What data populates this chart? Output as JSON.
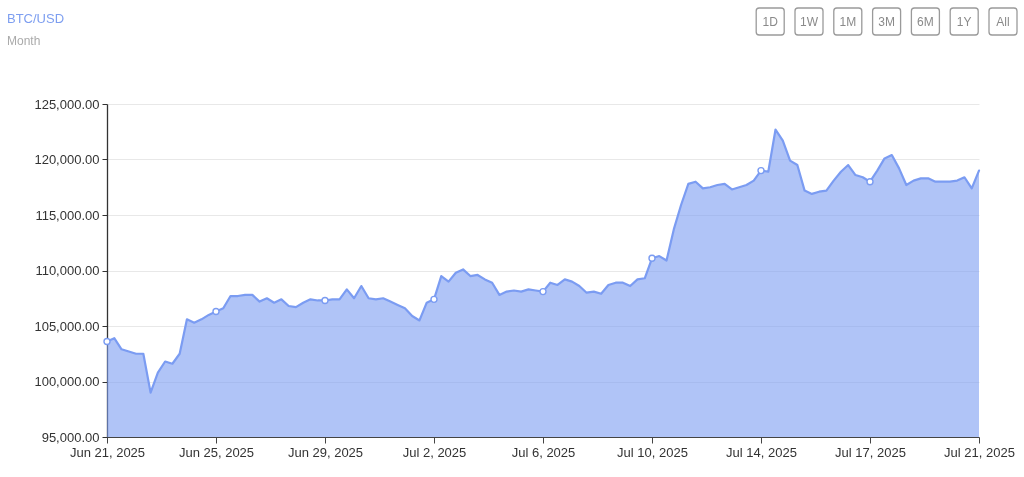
{
  "chart_data": {
    "type": "area",
    "title": "BTC/USD",
    "subtitle": "Month",
    "annotations": [
      "1D",
      "1W",
      "1M",
      "3M",
      "6M",
      "1Y",
      "All"
    ],
    "categories": [
      "Jun 21, 2025",
      null,
      null,
      null,
      null,
      null,
      null,
      null,
      null,
      null,
      null,
      null,
      null,
      null,
      null,
      "Jun 25, 2025",
      null,
      null,
      null,
      null,
      null,
      null,
      null,
      null,
      null,
      null,
      null,
      null,
      null,
      null,
      "Jun 29, 2025",
      null,
      null,
      null,
      null,
      null,
      null,
      null,
      null,
      null,
      null,
      null,
      null,
      null,
      null,
      "Jul 2, 2025",
      null,
      null,
      null,
      null,
      null,
      null,
      null,
      null,
      null,
      null,
      null,
      null,
      null,
      null,
      "Jul 6, 2025",
      null,
      null,
      null,
      null,
      null,
      null,
      null,
      null,
      null,
      null,
      null,
      null,
      null,
      null,
      "Jul 10, 2025",
      null,
      null,
      null,
      null,
      null,
      null,
      null,
      null,
      null,
      null,
      null,
      null,
      null,
      null,
      "Jul 14, 2025",
      null,
      null,
      null,
      null,
      null,
      null,
      null,
      null,
      null,
      null,
      null,
      null,
      null,
      null,
      "Jul 17, 2025",
      null,
      null,
      null,
      null,
      null,
      null,
      null,
      null,
      null,
      null,
      null,
      null,
      null,
      null,
      "Jul 21, 2025"
    ],
    "series": [
      {
        "color": "#7b9cf2",
        "values": [
          103600,
          103900,
          102900,
          102700,
          102500,
          102500,
          99000,
          100800,
          101800,
          101600,
          102500,
          105600,
          105300,
          105600,
          106000,
          106300,
          106600,
          107700,
          107700,
          107800,
          107800,
          107200,
          107500,
          107100,
          107400,
          106800,
          106700,
          107100,
          107400,
          107300,
          107300,
          107400,
          107400,
          108300,
          107500,
          108600,
          107500,
          107400,
          107500,
          107200,
          106900,
          106600,
          105900,
          105500,
          107100,
          107400,
          109500,
          109000,
          109800,
          110100,
          109500,
          109600,
          109200,
          108900,
          107800,
          108100,
          108200,
          108100,
          108300,
          108200,
          108100,
          108900,
          108700,
          109200,
          109000,
          108600,
          108000,
          108100,
          107900,
          108700,
          108900,
          108900,
          108600,
          109200,
          109300,
          111100,
          111300,
          110900,
          113700,
          115900,
          117800,
          118000,
          117400,
          117500,
          117700,
          117800,
          117300,
          117500,
          117700,
          118100,
          119000,
          118900,
          122700,
          121700,
          119900,
          119500,
          117200,
          116900,
          117100,
          117200,
          118100,
          118900,
          119500,
          118600,
          118400,
          118000,
          119000,
          120100,
          120400,
          119200,
          117700,
          118100,
          118300,
          118300,
          118000,
          118000,
          118000,
          118100,
          118400,
          117400,
          119000
        ]
      },
      {
        "type": "scatter",
        "color": "#7b9cf2",
        "marker": "circle",
        "values": [
          103600,
          null,
          null,
          null,
          null,
          null,
          null,
          null,
          null,
          null,
          null,
          null,
          null,
          null,
          null,
          106300,
          null,
          null,
          null,
          null,
          null,
          null,
          null,
          null,
          null,
          null,
          null,
          null,
          null,
          null,
          107300,
          null,
          null,
          null,
          null,
          null,
          null,
          null,
          null,
          null,
          null,
          null,
          null,
          null,
          null,
          107400,
          null,
          null,
          null,
          null,
          null,
          null,
          null,
          null,
          null,
          null,
          null,
          null,
          null,
          null,
          108100,
          null,
          null,
          null,
          null,
          null,
          null,
          null,
          null,
          null,
          null,
          null,
          null,
          null,
          null,
          111100,
          null,
          null,
          null,
          null,
          null,
          null,
          null,
          null,
          null,
          null,
          null,
          null,
          null,
          null,
          119000,
          null,
          null,
          null,
          null,
          null,
          null,
          null,
          null,
          null,
          null,
          null,
          null,
          null,
          null,
          118000,
          null,
          null,
          null,
          null,
          null,
          null,
          null,
          null,
          null,
          null,
          null,
          null,
          null,
          null,
          null
        ]
      }
    ],
    "ylim": [
      95000,
      125000
    ],
    "yticks": [
      {
        "value": 95000,
        "label": "95,000.00"
      },
      {
        "value": 100000,
        "label": "100,000.00"
      },
      {
        "value": 105000,
        "label": "105,000.00"
      },
      {
        "value": 110000,
        "label": "110,000.00"
      },
      {
        "value": 115000,
        "label": "115,000.00"
      },
      {
        "value": 120000,
        "label": "120,000.00"
      },
      {
        "value": 125000,
        "label": "125,000.00"
      }
    ],
    "grid": "y"
  }
}
